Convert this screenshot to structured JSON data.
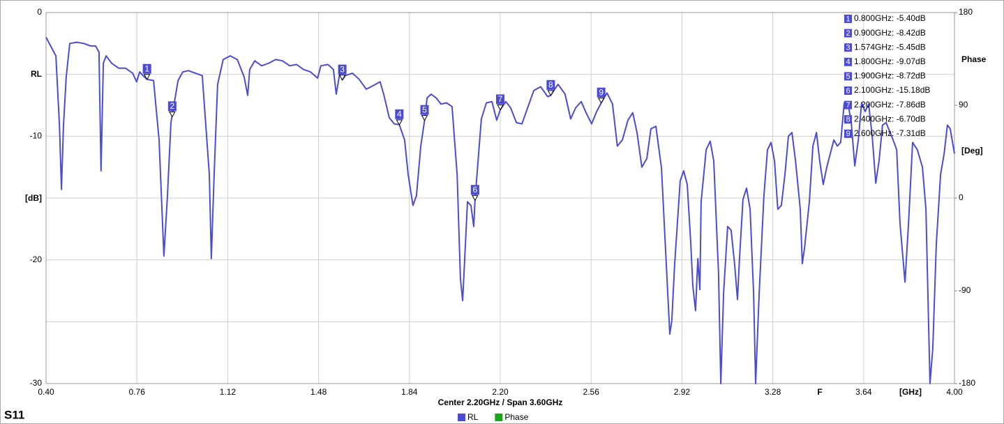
{
  "chart_data": {
    "type": "line",
    "title": "S11",
    "subtitle": "Center 2.20GHz / Span 3.60GHz",
    "y_title": "RL",
    "y_unit": "[dB]",
    "y2_title": "Phase",
    "y2_unit": "[Deg]",
    "x_title": "F",
    "x_unit": "[GHz]",
    "xlim": [
      0.4,
      4.0
    ],
    "xticks": [
      {
        "value": 0.4,
        "label": "0.40"
      },
      0.76,
      1.12,
      1.48,
      1.84,
      {
        "value": 2.2,
        "label": "2.20"
      },
      2.56,
      2.92,
      3.28,
      3.64,
      {
        "value": 4.0,
        "label": "4.00"
      }
    ],
    "ylim": [
      -30,
      0
    ],
    "yticks": [
      0,
      -10,
      -20,
      -30
    ],
    "yticks_minor": [
      -5,
      -15,
      -25
    ],
    "y2lim": [
      -180,
      180
    ],
    "y2ticks": [
      180,
      90,
      0,
      -90,
      -180
    ],
    "grid": true,
    "x": [
      0.4,
      0.439,
      0.453,
      0.461,
      0.469,
      0.48,
      0.494,
      0.522,
      0.549,
      0.577,
      0.596,
      0.61,
      0.618,
      0.627,
      0.638,
      0.66,
      0.688,
      0.715,
      0.743,
      0.759,
      0.771,
      0.784,
      0.8,
      0.826,
      0.848,
      0.867,
      0.881,
      0.895,
      0.909,
      0.923,
      0.942,
      0.964,
      0.992,
      1.019,
      1.047,
      1.055,
      1.066,
      1.08,
      1.102,
      1.13,
      1.158,
      1.185,
      1.199,
      1.207,
      1.227,
      1.254,
      1.282,
      1.31,
      1.337,
      1.365,
      1.393,
      1.42,
      1.448,
      1.476,
      1.489,
      1.517,
      1.539,
      1.55,
      1.564,
      1.574,
      1.586,
      1.614,
      1.641,
      1.669,
      1.697,
      1.724,
      1.738,
      1.76,
      1.78,
      1.8,
      1.821,
      1.835,
      1.854,
      1.868,
      1.885,
      1.9,
      1.91,
      1.926,
      1.946,
      1.965,
      1.987,
      2.009,
      2.029,
      2.042,
      2.051,
      2.062,
      2.07,
      2.084,
      2.095,
      2.1,
      2.125,
      2.145,
      2.167,
      2.186,
      2.2,
      2.222,
      2.241,
      2.264,
      2.286,
      2.305,
      2.333,
      2.36,
      2.388,
      2.4,
      2.429,
      2.457,
      2.479,
      2.499,
      2.521,
      2.54,
      2.562,
      2.582,
      2.6,
      2.623,
      2.645,
      2.664,
      2.684,
      2.706,
      2.725,
      2.742,
      2.761,
      2.781,
      2.797,
      2.817,
      2.839,
      2.858,
      2.872,
      2.88,
      2.891,
      2.913,
      2.927,
      2.941,
      2.955,
      2.963,
      2.974,
      2.983,
      2.991,
      2.996,
      3.016,
      3.032,
      3.046,
      3.065,
      3.074,
      3.085,
      3.101,
      3.115,
      3.129,
      3.14,
      3.148,
      3.162,
      3.176,
      3.19,
      3.204,
      3.212,
      3.226,
      3.245,
      3.259,
      3.273,
      3.287,
      3.3,
      3.314,
      3.328,
      3.342,
      3.356,
      3.37,
      3.389,
      3.397,
      3.406,
      3.425,
      3.439,
      3.453,
      3.466,
      3.48,
      3.494,
      3.522,
      3.536,
      3.549,
      3.563,
      3.577,
      3.591,
      3.605,
      3.619,
      3.632,
      3.646,
      3.66,
      3.674,
      3.688,
      3.701,
      3.715,
      3.729,
      3.757,
      3.771,
      3.784,
      3.804,
      3.818,
      3.834,
      3.853,
      3.873,
      3.887,
      3.903,
      3.914,
      3.928,
      3.945,
      3.959,
      3.972,
      3.983,
      4.0
    ],
    "series": [
      {
        "name": "RL",
        "color": "#4b4bd4",
        "values": [
          -2.0,
          -3.5,
          -9.1,
          -14.3,
          -9.1,
          -5.2,
          -2.5,
          -2.4,
          -2.5,
          -2.7,
          -2.7,
          -3.2,
          -12.8,
          -4.1,
          -3.5,
          -4.1,
          -4.5,
          -4.5,
          -4.9,
          -5.6,
          -4.8,
          -5.1,
          -5.4,
          -5.5,
          -10.3,
          -19.7,
          -14.8,
          -8.9,
          -7.2,
          -5.5,
          -4.8,
          -4.7,
          -4.9,
          -5.1,
          -13.1,
          -19.9,
          -13.1,
          -5.8,
          -3.8,
          -3.5,
          -3.8,
          -5.2,
          -6.7,
          -4.6,
          -3.9,
          -4.3,
          -4.1,
          -3.8,
          -3.9,
          -4.3,
          -4.2,
          -4.6,
          -4.8,
          -5.3,
          -4.3,
          -4.2,
          -4.6,
          -6.6,
          -4.9,
          -5.45,
          -5.1,
          -4.9,
          -5.4,
          -6.2,
          -5.9,
          -5.6,
          -6.6,
          -8.5,
          -9.0,
          -9.07,
          -10.3,
          -13.1,
          -15.6,
          -14.8,
          -10.8,
          -8.72,
          -6.9,
          -6.6,
          -6.9,
          -7.4,
          -7.3,
          -7.6,
          -13.1,
          -21.5,
          -23.3,
          -18.7,
          -15.3,
          -15.6,
          -17.3,
          -15.18,
          -8.6,
          -7.3,
          -7.2,
          -8.7,
          -7.86,
          -7.2,
          -7.7,
          -8.9,
          -9.0,
          -7.9,
          -6.3,
          -6.0,
          -6.8,
          -6.7,
          -5.8,
          -6.6,
          -8.6,
          -7.7,
          -7.2,
          -8.1,
          -9.0,
          -8.0,
          -7.31,
          -6.5,
          -7.4,
          -10.8,
          -10.3,
          -8.7,
          -8.1,
          -9.7,
          -12.5,
          -11.8,
          -9.4,
          -9.2,
          -12.6,
          -20.4,
          -26.0,
          -24.9,
          -20.4,
          -13.6,
          -12.8,
          -13.9,
          -18.7,
          -22.1,
          -24.1,
          -19.9,
          -22.4,
          -15.3,
          -11.1,
          -10.4,
          -12.0,
          -21.0,
          -30.0,
          -22.7,
          -17.3,
          -17.6,
          -20.4,
          -23.2,
          -19.9,
          -15.1,
          -14.2,
          -15.9,
          -22.7,
          -30.0,
          -22.7,
          -14.8,
          -11.1,
          -10.5,
          -12.0,
          -15.9,
          -15.6,
          -13.1,
          -10.0,
          -9.7,
          -12.0,
          -15.9,
          -20.3,
          -19.0,
          -15.3,
          -10.8,
          -9.7,
          -12.0,
          -13.9,
          -12.5,
          -10.3,
          -10.8,
          -10.5,
          -7.3,
          -7.2,
          -8.9,
          -12.4,
          -10.3,
          -7.3,
          -8.0,
          -7.4,
          -10.0,
          -13.8,
          -12.0,
          -9.1,
          -8.9,
          -10.3,
          -11.1,
          -17.0,
          -21.8,
          -17.0,
          -10.5,
          -11.1,
          -12.5,
          -15.9,
          -30.0,
          -27.2,
          -18.7,
          -13.1,
          -11.4,
          -9.1,
          -9.4,
          -11.4
        ]
      }
    ],
    "legend": [
      {
        "name": "RL",
        "color": "#4b4bd4"
      },
      {
        "name": "Phase",
        "color": "#1aa81a"
      }
    ],
    "markers": [
      {
        "label": "1",
        "x": 0.8,
        "y": -5.4,
        "text": "0.800GHz: -5.40dB"
      },
      {
        "label": "2",
        "x": 0.9,
        "y": -8.42,
        "text": "0.900GHz: -8.42dB"
      },
      {
        "label": "3",
        "x": 1.574,
        "y": -5.45,
        "text": "1.574GHz: -5.45dB"
      },
      {
        "label": "4",
        "x": 1.8,
        "y": -9.07,
        "text": "1.800GHz: -9.07dB"
      },
      {
        "label": "5",
        "x": 1.9,
        "y": -8.72,
        "text": "1.900GHz: -8.72dB"
      },
      {
        "label": "6",
        "x": 2.1,
        "y": -15.18,
        "text": "2.100GHz: -15.18dB"
      },
      {
        "label": "7",
        "x": 2.2,
        "y": -7.86,
        "text": "2.200GHz: -7.86dB"
      },
      {
        "label": "8",
        "x": 2.4,
        "y": -6.7,
        "text": "2.400GHz: -6.70dB"
      },
      {
        "label": "9",
        "x": 2.6,
        "y": -7.31,
        "text": "2.600GHz: -7.31dB"
      }
    ]
  }
}
